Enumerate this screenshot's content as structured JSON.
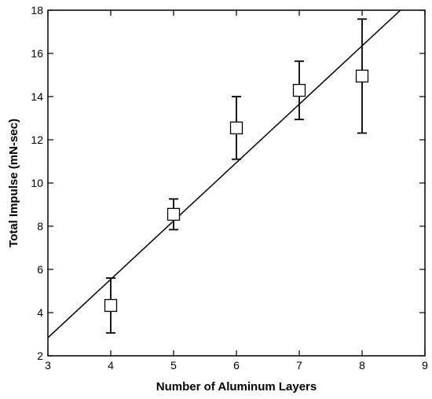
{
  "chart_data": {
    "type": "scatter",
    "x_label": "Number of Aluminum Layers",
    "y_label": "Total Impulse (mN-sec)",
    "x": [
      4,
      5,
      6,
      7,
      8
    ],
    "values": [
      4.33,
      8.55,
      12.55,
      14.29,
      14.95
    ],
    "errors": [
      1.27,
      0.71,
      1.45,
      1.35,
      2.64
    ],
    "fit": {
      "x": [
        3,
        8.61
      ],
      "values": [
        2.84,
        18
      ]
    },
    "color": "#000000",
    "xlim": [
      3,
      9
    ],
    "xticks": [
      3,
      4,
      5,
      6,
      7,
      8,
      9
    ],
    "ylim": [
      2,
      18
    ],
    "yticks": [
      2,
      4,
      6,
      8,
      10,
      12,
      14,
      16,
      18
    ],
    "grid": false
  }
}
